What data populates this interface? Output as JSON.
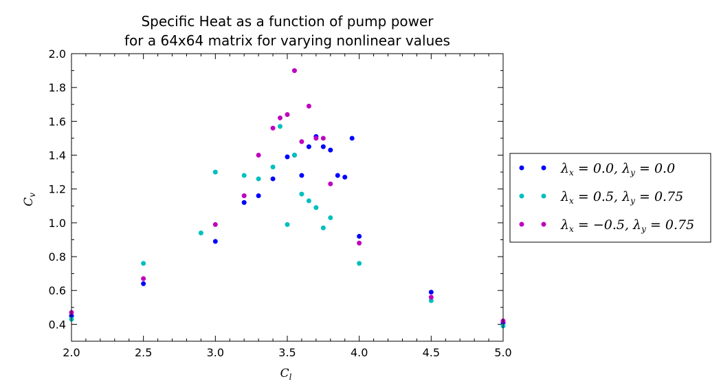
{
  "chart_data": {
    "type": "scatter",
    "title_line1": "Specific Heat as a function of pump power",
    "title_line2": "for a 64x64 matrix for varying nonlinear values",
    "xlabel": "C",
    "xlabel_sub": "l",
    "ylabel": "C",
    "ylabel_sub": "v",
    "xlim": [
      2.0,
      5.0
    ],
    "ylim": [
      0.3,
      2.0
    ],
    "xticks": [
      2.0,
      2.5,
      3.0,
      3.5,
      4.0,
      4.5,
      5.0
    ],
    "xtick_labels": [
      "2.0",
      "2.5",
      "3.0",
      "3.5",
      "4.0",
      "4.5",
      "5.0"
    ],
    "yticks": [
      0.4,
      0.6,
      0.8,
      1.0,
      1.2,
      1.4,
      1.6,
      1.8,
      2.0
    ],
    "ytick_labels": [
      "0.4",
      "0.6",
      "0.8",
      "1.0",
      "1.2",
      "1.4",
      "1.6",
      "1.8",
      "2.0"
    ],
    "grid": false,
    "legend_position": "outside-right",
    "series": [
      {
        "name": "λx = 0.0, λy = 0.0",
        "color": "#0000ff",
        "points": [
          [
            2.0,
            0.45
          ],
          [
            2.5,
            0.64
          ],
          [
            3.0,
            0.89
          ],
          [
            3.2,
            1.12
          ],
          [
            3.3,
            1.16
          ],
          [
            3.4,
            1.26
          ],
          [
            3.5,
            1.39
          ],
          [
            3.55,
            1.4
          ],
          [
            3.6,
            1.28
          ],
          [
            3.65,
            1.45
          ],
          [
            3.7,
            1.51
          ],
          [
            3.75,
            1.45
          ],
          [
            3.8,
            1.43
          ],
          [
            3.85,
            1.28
          ],
          [
            3.9,
            1.27
          ],
          [
            3.95,
            1.5
          ],
          [
            4.0,
            0.92
          ],
          [
            4.5,
            0.59
          ],
          [
            5.0,
            0.41
          ]
        ]
      },
      {
        "name": "λx = 0.5, λy = 0.75",
        "color": "#00bfbf",
        "points": [
          [
            2.0,
            0.43
          ],
          [
            2.5,
            0.76
          ],
          [
            2.9,
            0.94
          ],
          [
            3.0,
            1.3
          ],
          [
            3.2,
            1.28
          ],
          [
            3.3,
            1.26
          ],
          [
            3.4,
            1.33
          ],
          [
            3.45,
            1.57
          ],
          [
            3.5,
            0.99
          ],
          [
            3.55,
            1.4
          ],
          [
            3.6,
            1.17
          ],
          [
            3.65,
            1.13
          ],
          [
            3.7,
            1.09
          ],
          [
            3.75,
            0.97
          ],
          [
            3.8,
            1.03
          ],
          [
            4.0,
            0.76
          ],
          [
            4.5,
            0.54
          ],
          [
            5.0,
            0.39
          ]
        ]
      },
      {
        "name": "λx = −0.5, λy = 0.75",
        "color": "#bf00bf",
        "points": [
          [
            2.0,
            0.47
          ],
          [
            2.5,
            0.67
          ],
          [
            3.0,
            0.99
          ],
          [
            3.2,
            1.16
          ],
          [
            3.3,
            1.4
          ],
          [
            3.4,
            1.56
          ],
          [
            3.45,
            1.62
          ],
          [
            3.5,
            1.64
          ],
          [
            3.55,
            1.9
          ],
          [
            3.6,
            1.48
          ],
          [
            3.65,
            1.69
          ],
          [
            3.7,
            1.5
          ],
          [
            3.75,
            1.5
          ],
          [
            3.8,
            1.23
          ],
          [
            4.0,
            0.88
          ],
          [
            4.5,
            0.56
          ],
          [
            5.0,
            0.42
          ]
        ]
      }
    ]
  },
  "legend": {
    "entries": [
      {
        "lx": "0.0",
        "ly": "0.0"
      },
      {
        "lx": "0.5",
        "ly": "0.75"
      },
      {
        "lx": "−0.5",
        "ly": "0.75"
      }
    ]
  }
}
